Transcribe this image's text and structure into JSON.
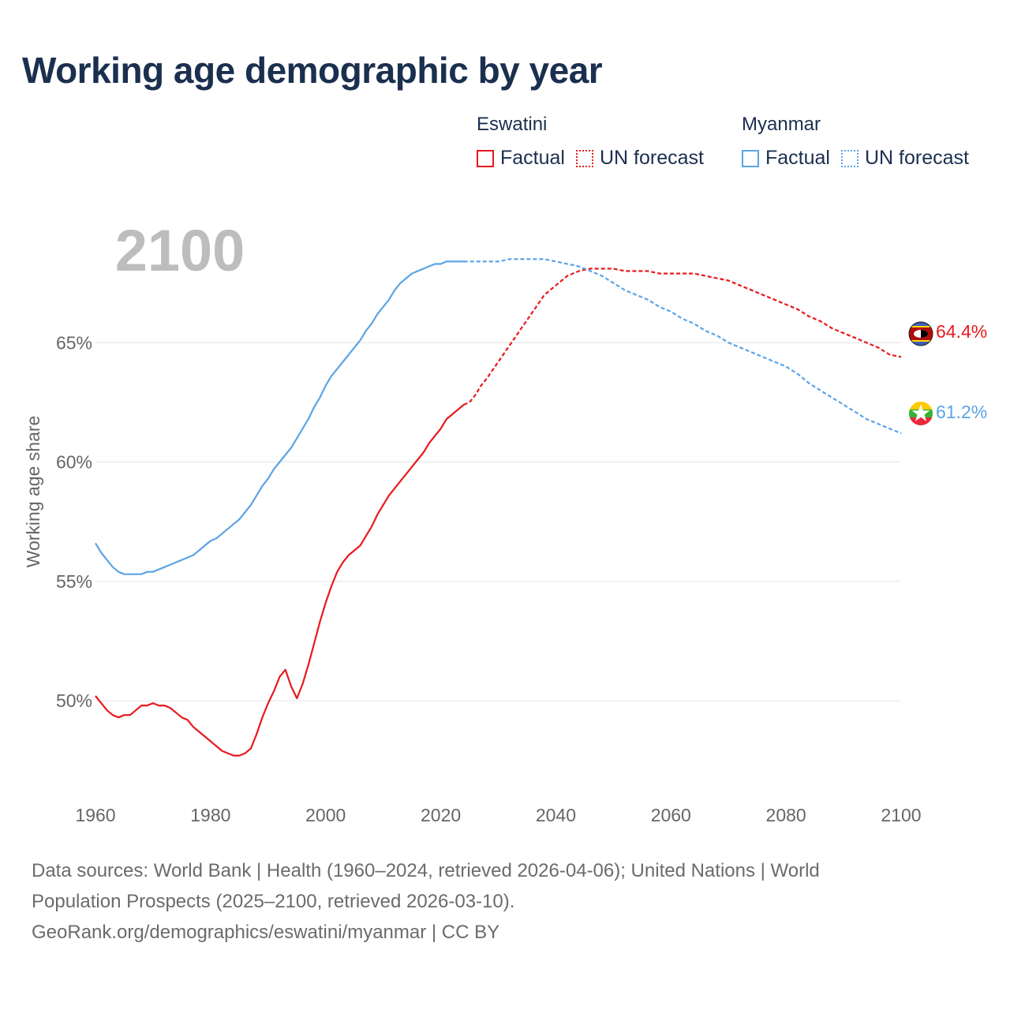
{
  "title": "Working age demographic by year",
  "legend": {
    "groups": [
      {
        "name": "Eswatini",
        "items": [
          {
            "label": "Factual"
          },
          {
            "label": "UN forecast"
          }
        ]
      },
      {
        "name": "Myanmar",
        "items": [
          {
            "label": "Factual"
          },
          {
            "label": "UN forecast"
          }
        ]
      }
    ]
  },
  "footer": {
    "line1": "Data sources: World Bank | Health (1960–2024, retrieved 2026-04-06); United Nations | World",
    "line2": "Population Prospects (2025–2100, retrieved 2026-03-10).",
    "line3": "GeoRank.org/demographics/eswatini/myanmar | CC BY"
  },
  "colors": {
    "eswatini": "#e8191d",
    "myanmar": "#5ba4e6",
    "year_watermark": "#bdbdbd",
    "grid": "#e6e6e6",
    "axis_text": "#666666"
  },
  "chart_data": {
    "type": "line",
    "current_year_label": "2100",
    "ylabel": "Working age share",
    "xlim": [
      1960,
      2100
    ],
    "ylim": [
      46.3,
      70.1
    ],
    "x_ticks": [
      1960,
      1980,
      2000,
      2020,
      2040,
      2060,
      2080,
      2100
    ],
    "y_ticks": [
      50,
      55,
      60,
      65
    ],
    "y_tick_labels": [
      "50%",
      "55%",
      "60%",
      "65%"
    ],
    "series": [
      {
        "name": "Eswatini",
        "end_label": "64.4%",
        "factual": {
          "x": [
            1960,
            1961,
            1962,
            1963,
            1964,
            1965,
            1966,
            1967,
            1968,
            1969,
            1970,
            1971,
            1972,
            1973,
            1974,
            1975,
            1976,
            1977,
            1978,
            1979,
            1980,
            1981,
            1982,
            1983,
            1984,
            1985,
            1986,
            1987,
            1988,
            1989,
            1990,
            1991,
            1992,
            1993,
            1994,
            1995,
            1996,
            1997,
            1998,
            1999,
            2000,
            2001,
            2002,
            2003,
            2004,
            2005,
            2006,
            2007,
            2008,
            2009,
            2010,
            2011,
            2012,
            2013,
            2014,
            2015,
            2016,
            2017,
            2018,
            2019,
            2020,
            2021,
            2022,
            2023,
            2024
          ],
          "y": [
            50.2,
            49.9,
            49.6,
            49.4,
            49.3,
            49.4,
            49.4,
            49.6,
            49.8,
            49.8,
            49.9,
            49.8,
            49.8,
            49.7,
            49.5,
            49.3,
            49.2,
            48.9,
            48.7,
            48.5,
            48.3,
            48.1,
            47.9,
            47.8,
            47.7,
            47.7,
            47.8,
            48.0,
            48.6,
            49.3,
            49.9,
            50.4,
            51.0,
            51.3,
            50.6,
            50.1,
            50.7,
            51.5,
            52.4,
            53.3,
            54.1,
            54.8,
            55.4,
            55.8,
            56.1,
            56.3,
            56.5,
            56.9,
            57.3,
            57.8,
            58.2,
            58.6,
            58.9,
            59.2,
            59.5,
            59.8,
            60.1,
            60.4,
            60.8,
            61.1,
            61.4,
            61.8,
            62.0,
            62.2,
            62.4
          ]
        },
        "forecast": {
          "x": [
            2024,
            2025,
            2026,
            2027,
            2028,
            2030,
            2032,
            2034,
            2036,
            2038,
            2040,
            2042,
            2044,
            2046,
            2048,
            2050,
            2052,
            2054,
            2056,
            2058,
            2060,
            2062,
            2064,
            2066,
            2068,
            2070,
            2072,
            2074,
            2076,
            2078,
            2080,
            2082,
            2084,
            2086,
            2088,
            2090,
            2092,
            2094,
            2096,
            2098,
            2100
          ],
          "y": [
            62.4,
            62.5,
            62.8,
            63.2,
            63.5,
            64.2,
            64.9,
            65.6,
            66.3,
            67.0,
            67.4,
            67.8,
            68.0,
            68.1,
            68.1,
            68.1,
            68.0,
            68.0,
            68.0,
            67.9,
            67.9,
            67.9,
            67.9,
            67.8,
            67.7,
            67.6,
            67.4,
            67.2,
            67.0,
            66.8,
            66.6,
            66.4,
            66.1,
            65.9,
            65.6,
            65.4,
            65.2,
            65.0,
            64.8,
            64.5,
            64.4
          ]
        }
      },
      {
        "name": "Myanmar",
        "end_label": "61.2%",
        "factual": {
          "x": [
            1960,
            1961,
            1962,
            1963,
            1964,
            1965,
            1966,
            1967,
            1968,
            1969,
            1970,
            1971,
            1972,
            1973,
            1974,
            1975,
            1976,
            1977,
            1978,
            1979,
            1980,
            1981,
            1982,
            1983,
            1984,
            1985,
            1986,
            1987,
            1988,
            1989,
            1990,
            1991,
            1992,
            1993,
            1994,
            1995,
            1996,
            1997,
            1998,
            1999,
            2000,
            2001,
            2002,
            2003,
            2004,
            2005,
            2006,
            2007,
            2008,
            2009,
            2010,
            2011,
            2012,
            2013,
            2014,
            2015,
            2016,
            2017,
            2018,
            2019,
            2020,
            2021,
            2022,
            2023,
            2024
          ],
          "y": [
            56.6,
            56.2,
            55.9,
            55.6,
            55.4,
            55.3,
            55.3,
            55.3,
            55.3,
            55.4,
            55.4,
            55.5,
            55.6,
            55.7,
            55.8,
            55.9,
            56.0,
            56.1,
            56.3,
            56.5,
            56.7,
            56.8,
            57.0,
            57.2,
            57.4,
            57.6,
            57.9,
            58.2,
            58.6,
            59.0,
            59.3,
            59.7,
            60.0,
            60.3,
            60.6,
            61.0,
            61.4,
            61.8,
            62.3,
            62.7,
            63.2,
            63.6,
            63.9,
            64.2,
            64.5,
            64.8,
            65.1,
            65.5,
            65.8,
            66.2,
            66.5,
            66.8,
            67.2,
            67.5,
            67.7,
            67.9,
            68.0,
            68.1,
            68.2,
            68.3,
            68.3,
            68.4,
            68.4,
            68.4,
            68.4
          ]
        },
        "forecast": {
          "x": [
            2024,
            2026,
            2028,
            2030,
            2032,
            2034,
            2036,
            2038,
            2040,
            2042,
            2044,
            2046,
            2048,
            2050,
            2052,
            2054,
            2056,
            2058,
            2060,
            2062,
            2064,
            2066,
            2068,
            2070,
            2072,
            2074,
            2076,
            2078,
            2080,
            2082,
            2084,
            2086,
            2088,
            2090,
            2092,
            2094,
            2096,
            2098,
            2100
          ],
          "y": [
            68.4,
            68.4,
            68.4,
            68.4,
            68.5,
            68.5,
            68.5,
            68.5,
            68.4,
            68.3,
            68.2,
            68.0,
            67.8,
            67.5,
            67.2,
            67.0,
            66.8,
            66.5,
            66.3,
            66.0,
            65.8,
            65.5,
            65.3,
            65.0,
            64.8,
            64.6,
            64.4,
            64.2,
            64.0,
            63.7,
            63.3,
            63.0,
            62.7,
            62.4,
            62.1,
            61.8,
            61.6,
            61.4,
            61.2
          ]
        }
      }
    ]
  }
}
